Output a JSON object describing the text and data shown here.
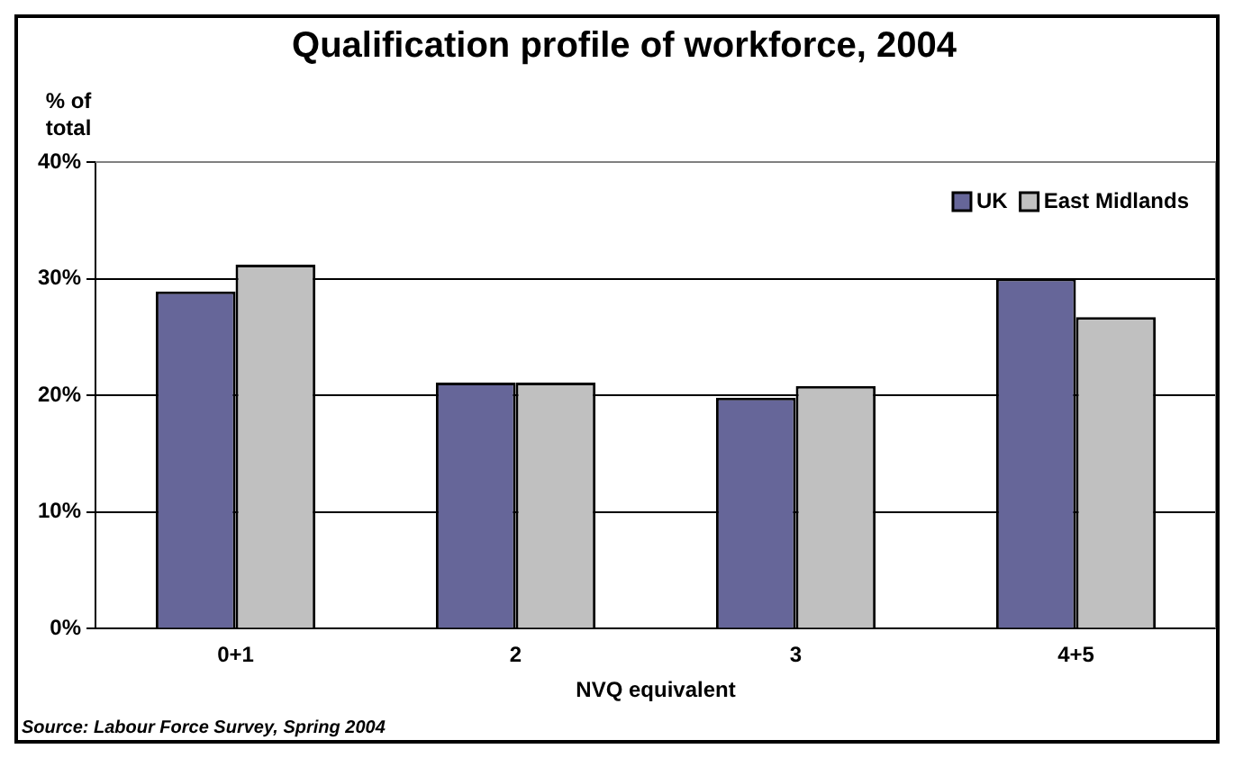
{
  "chart_data": {
    "type": "bar",
    "title": "Qualification profile of workforce, 2004",
    "ylabel": "% of total",
    "xlabel": "NVQ equivalent",
    "categories": [
      "0+1",
      "2",
      "3",
      "4+5"
    ],
    "series": [
      {
        "name": "UK",
        "color": "#666699",
        "values": [
          28.9,
          21.1,
          19.8,
          30.0
        ]
      },
      {
        "name": "East Midlands",
        "color": "#c0c0c0",
        "values": [
          31.2,
          21.1,
          20.8,
          26.7
        ]
      }
    ],
    "ylim": [
      0,
      40
    ],
    "yticks": [
      {
        "value": 0,
        "label": "0%"
      },
      {
        "value": 10,
        "label": "10%"
      },
      {
        "value": 20,
        "label": "20%"
      },
      {
        "value": 30,
        "label": "30%"
      },
      {
        "value": 40,
        "label": "40%"
      }
    ],
    "grid": "y",
    "legend": "top right",
    "annotations": [
      "Source: Labour Force Survey, Spring 2004"
    ]
  }
}
